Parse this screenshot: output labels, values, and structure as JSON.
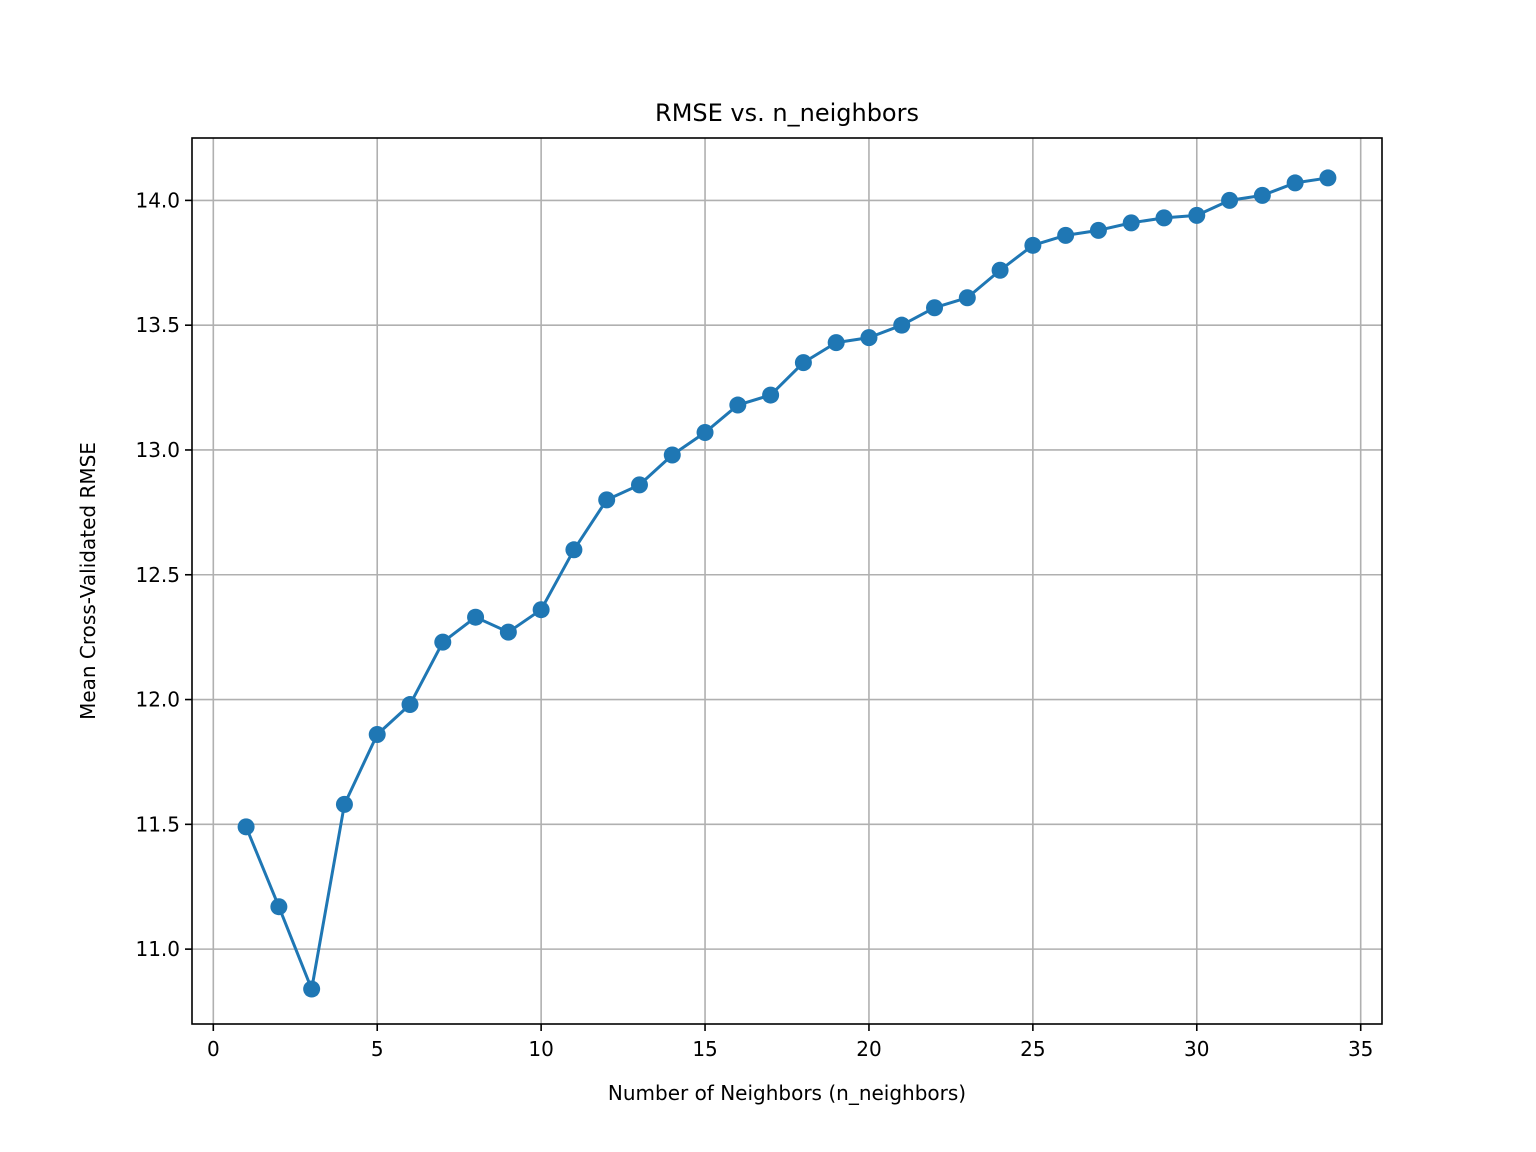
{
  "chart_data": {
    "type": "line",
    "title": "RMSE vs. n_neighbors",
    "xlabel": "Number of Neighbors (n_neighbors)",
    "ylabel": "Mean Cross-Validated RMSE",
    "xlim": [
      -0.65,
      35.65
    ],
    "ylim": [
      10.7,
      14.25
    ],
    "xticks": [
      0,
      5,
      10,
      15,
      20,
      25,
      30,
      35
    ],
    "xtick_labels": [
      "0",
      "5",
      "10",
      "15",
      "20",
      "25",
      "30",
      "35"
    ],
    "yticks": [
      11.0,
      11.5,
      12.0,
      12.5,
      13.0,
      13.5,
      14.0
    ],
    "ytick_labels": [
      "11.0",
      "11.5",
      "12.0",
      "12.5",
      "13.0",
      "13.5",
      "14.0"
    ],
    "grid": true,
    "series": [
      {
        "color": "#1f77b4",
        "marker": "circle",
        "x": [
          1,
          2,
          3,
          4,
          5,
          6,
          7,
          8,
          9,
          10,
          11,
          12,
          13,
          14,
          15,
          16,
          17,
          18,
          19,
          20,
          21,
          22,
          23,
          24,
          25,
          26,
          27,
          28,
          29,
          30,
          31,
          32,
          33,
          34
        ],
        "y": [
          11.49,
          11.17,
          10.84,
          11.58,
          11.86,
          11.98,
          12.23,
          12.33,
          12.27,
          12.36,
          12.6,
          12.8,
          12.86,
          12.98,
          13.07,
          13.18,
          13.22,
          13.35,
          13.43,
          13.45,
          13.5,
          13.57,
          13.61,
          13.72,
          13.82,
          13.86,
          13.88,
          13.91,
          13.93,
          13.94,
          14.0,
          14.02,
          14.07,
          14.09
        ]
      }
    ]
  }
}
